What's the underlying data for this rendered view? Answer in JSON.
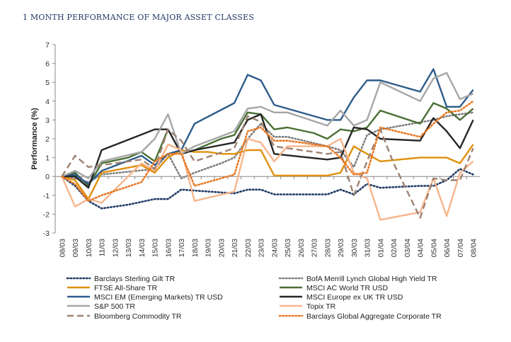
{
  "title": "1 MONTH PERFORMANCE OF MAJOR ASSET CLASSES",
  "chart_data": {
    "type": "line",
    "ylabel": "Performance (%)",
    "ylim": [
      -3,
      7
    ],
    "yticks": [
      -3,
      -2,
      -1,
      0,
      1,
      2,
      3,
      4,
      5,
      6,
      7
    ],
    "grid": false,
    "legend_position": "bottom",
    "x": [
      "08/03",
      "09/03",
      "10/03",
      "11/03",
      "12/03",
      "13/03",
      "14/03",
      "15/03",
      "16/03",
      "17/03",
      "18/03",
      "19/03",
      "20/03",
      "21/03",
      "22/03",
      "23/03",
      "24/03",
      "25/03",
      "26/03",
      "27/03",
      "28/03",
      "29/03",
      "30/03",
      "31/03",
      "01/04",
      "02/04",
      "03/04",
      "04/04",
      "05/04",
      "06/04",
      "07/04",
      "08/04"
    ],
    "series": [
      {
        "name": "Barclays Sterling Gilt TR",
        "color": "#1f3864",
        "dash": "dot",
        "points": [
          [
            0,
            0
          ],
          [
            1,
            -0.5
          ],
          [
            2,
            -1.3
          ],
          [
            3,
            -1.7
          ],
          [
            5,
            -1.5
          ],
          [
            7,
            -1.2
          ],
          [
            8,
            -1.2
          ],
          [
            9,
            -0.7
          ],
          [
            13,
            -0.9
          ],
          [
            14,
            -0.7
          ],
          [
            15,
            -0.7
          ],
          [
            16,
            -0.95
          ],
          [
            20,
            -0.95
          ],
          [
            21,
            -0.7
          ],
          [
            22,
            -0.95
          ],
          [
            23,
            -0.4
          ],
          [
            24,
            -0.6
          ],
          [
            27,
            -0.5
          ],
          [
            28,
            -0.5
          ],
          [
            29,
            -0.2
          ],
          [
            30,
            0.4
          ],
          [
            31,
            0.1
          ]
        ]
      },
      {
        "name": "BofA Merrill Lynch Global High Yield TR",
        "color": "#7f7f7f",
        "dash": "dot",
        "points": [
          [
            0,
            0
          ],
          [
            1,
            -0.1
          ],
          [
            2,
            -0.3
          ],
          [
            3,
            0.1
          ],
          [
            7,
            0.4
          ],
          [
            8,
            1.2
          ],
          [
            9,
            -0.1
          ],
          [
            10,
            0.2
          ],
          [
            12,
            0.7
          ],
          [
            13,
            1.0
          ],
          [
            14,
            2.0
          ],
          [
            15,
            2.8
          ],
          [
            16,
            2.1
          ],
          [
            17,
            2.1
          ],
          [
            20,
            1.6
          ],
          [
            21,
            1.4
          ],
          [
            22,
            0.5
          ],
          [
            23,
            2.2
          ],
          [
            24,
            2.5
          ],
          [
            28,
            3.0
          ],
          [
            29,
            3.2
          ],
          [
            30,
            3.3
          ],
          [
            31,
            3.4
          ]
        ]
      },
      {
        "name": "FTSE All-Share TR",
        "color": "#e0900e",
        "dash": "solid",
        "points": [
          [
            0,
            0
          ],
          [
            1,
            -0.2
          ],
          [
            2,
            -1.2
          ],
          [
            3,
            0.2
          ],
          [
            6,
            0.6
          ],
          [
            7,
            0.2
          ],
          [
            8,
            1.0
          ],
          [
            9,
            1.4
          ],
          [
            10,
            1.3
          ],
          [
            11,
            1.3
          ],
          [
            12,
            1.2
          ],
          [
            13,
            1.2
          ],
          [
            14,
            1.4
          ],
          [
            15,
            1.4
          ],
          [
            16,
            0.05
          ],
          [
            20,
            0.05
          ],
          [
            21,
            0.2
          ],
          [
            22,
            1.6
          ],
          [
            23,
            1.2
          ],
          [
            24,
            0.8
          ],
          [
            27,
            1.0
          ],
          [
            29,
            1.0
          ],
          [
            30,
            0.7
          ],
          [
            31,
            1.7
          ]
        ]
      },
      {
        "name": "MSCI AC World TR USD",
        "color": "#4a6f35",
        "dash": "solid",
        "points": [
          [
            0,
            0
          ],
          [
            1,
            0.2
          ],
          [
            2,
            -0.5
          ],
          [
            3,
            0.7
          ],
          [
            5,
            1.0
          ],
          [
            6,
            1.3
          ],
          [
            7,
            0.8
          ],
          [
            8,
            2.5
          ],
          [
            9,
            1.2
          ],
          [
            10,
            1.4
          ],
          [
            12,
            2.0
          ],
          [
            13,
            2.2
          ],
          [
            14,
            3.4
          ],
          [
            15,
            3.3
          ],
          [
            16,
            2.5
          ],
          [
            17,
            2.6
          ],
          [
            19,
            2.3
          ],
          [
            20,
            2.0
          ],
          [
            21,
            2.5
          ],
          [
            22,
            2.4
          ],
          [
            23,
            2.6
          ],
          [
            24,
            3.5
          ],
          [
            27,
            2.8
          ],
          [
            28,
            3.9
          ],
          [
            29,
            3.6
          ],
          [
            30,
            3.0
          ],
          [
            31,
            3.6
          ]
        ]
      },
      {
        "name": "MSCI EM (Emerging Markets) TR USD",
        "color": "#2e5c8a",
        "dash": "solid",
        "points": [
          [
            0,
            0
          ],
          [
            1,
            0.1
          ],
          [
            2,
            -0.4
          ],
          [
            3,
            0.3
          ],
          [
            6,
            1.1
          ],
          [
            7,
            0.6
          ],
          [
            8,
            1.2
          ],
          [
            9,
            1.4
          ],
          [
            10,
            2.8
          ],
          [
            13,
            3.9
          ],
          [
            14,
            5.4
          ],
          [
            15,
            5.1
          ],
          [
            16,
            3.8
          ],
          [
            17,
            3.6
          ],
          [
            20,
            3.0
          ],
          [
            21,
            3.0
          ],
          [
            22,
            4.2
          ],
          [
            23,
            5.1
          ],
          [
            24,
            5.1
          ],
          [
            27,
            4.5
          ],
          [
            28,
            5.7
          ],
          [
            29,
            3.7
          ],
          [
            30,
            3.7
          ],
          [
            31,
            4.6
          ]
        ]
      },
      {
        "name": "MSCI Europe ex UK TR USD",
        "color": "#262626",
        "dash": "solid",
        "points": [
          [
            0,
            0
          ],
          [
            1,
            0
          ],
          [
            2,
            -0.6
          ],
          [
            3,
            1.4
          ],
          [
            7,
            2.5
          ],
          [
            8,
            2.5
          ],
          [
            9,
            1.2
          ],
          [
            10,
            1.4
          ],
          [
            13,
            1.8
          ],
          [
            14,
            3.0
          ],
          [
            15,
            3.3
          ],
          [
            16,
            1.2
          ],
          [
            20,
            0.9
          ],
          [
            21,
            1.0
          ],
          [
            22,
            2.6
          ],
          [
            23,
            2.5
          ],
          [
            24,
            2.0
          ],
          [
            27,
            1.9
          ],
          [
            28,
            3.1
          ],
          [
            29,
            2.4
          ],
          [
            30,
            1.5
          ],
          [
            31,
            3.0
          ]
        ]
      },
      {
        "name": "S&P 500 TR",
        "color": "#a6a6a6",
        "dash": "solid",
        "points": [
          [
            0,
            0
          ],
          [
            1,
            0.3
          ],
          [
            2,
            -0.1
          ],
          [
            3,
            0.8
          ],
          [
            6,
            1.3
          ],
          [
            7,
            2.0
          ],
          [
            8,
            3.3
          ],
          [
            9,
            1.2
          ],
          [
            10,
            1.6
          ],
          [
            13,
            2.4
          ],
          [
            14,
            3.6
          ],
          [
            15,
            3.7
          ],
          [
            16,
            3.4
          ],
          [
            17,
            3.4
          ],
          [
            20,
            2.7
          ],
          [
            21,
            3.5
          ],
          [
            22,
            2.7
          ],
          [
            23,
            3.0
          ],
          [
            24,
            5.0
          ],
          [
            27,
            4.0
          ],
          [
            28,
            5.2
          ],
          [
            29,
            5.5
          ],
          [
            30,
            4.1
          ],
          [
            31,
            4.4
          ]
        ]
      },
      {
        "name": "Topix TR",
        "color": "#f7b58a",
        "dash": "solid",
        "points": [
          [
            0,
            0
          ],
          [
            1,
            -1.6
          ],
          [
            2,
            -1.2
          ],
          [
            3,
            -1.4
          ],
          [
            6,
            0.7
          ],
          [
            7,
            0.3
          ],
          [
            8,
            1.7
          ],
          [
            9,
            1.4
          ],
          [
            10,
            -1.3
          ],
          [
            13,
            -0.8
          ],
          [
            14,
            2.0
          ],
          [
            15,
            1.8
          ],
          [
            16,
            0.8
          ],
          [
            17,
            1.6
          ],
          [
            20,
            1.6
          ],
          [
            21,
            2.0
          ],
          [
            22,
            0.2
          ],
          [
            23,
            -0.1
          ],
          [
            24,
            -2.3
          ],
          [
            27,
            -1.9
          ],
          [
            28,
            -0.1
          ],
          [
            29,
            -2.1
          ],
          [
            30,
            0.2
          ],
          [
            31,
            0.8
          ]
        ]
      },
      {
        "name": "Bloomberg Commodity TR",
        "color": "#9e8272",
        "dash": "dash",
        "points": [
          [
            0,
            0
          ],
          [
            1,
            1.1
          ],
          [
            2,
            0.5
          ],
          [
            3,
            0.6
          ],
          [
            6,
            0.9
          ],
          [
            7,
            0.4
          ],
          [
            8,
            2.5
          ],
          [
            9,
            1.9
          ],
          [
            10,
            0.8
          ],
          [
            13,
            1.5
          ],
          [
            14,
            3.2
          ],
          [
            15,
            2.9
          ],
          [
            16,
            1.6
          ],
          [
            17,
            1.5
          ],
          [
            20,
            1.2
          ],
          [
            21,
            1.3
          ],
          [
            22,
            -1.0
          ],
          [
            23,
            0.8
          ],
          [
            24,
            2.5
          ],
          [
            25,
            0.7
          ],
          [
            27,
            -2.2
          ],
          [
            28,
            -0.1
          ],
          [
            29,
            -0.2
          ],
          [
            30,
            -0.2
          ],
          [
            31,
            1.5
          ]
        ]
      },
      {
        "name": "Barclays Global Aggregate Corporate TR",
        "color": "#e87722",
        "dash": "dot",
        "points": [
          [
            0,
            0
          ],
          [
            1,
            -0.4
          ],
          [
            2,
            -1.3
          ],
          [
            3,
            -1.0
          ],
          [
            6,
            -0.3
          ],
          [
            7,
            0.8
          ],
          [
            8,
            1.2
          ],
          [
            9,
            1.2
          ],
          [
            10,
            -0.5
          ],
          [
            13,
            0.1
          ],
          [
            14,
            2.4
          ],
          [
            15,
            2.6
          ],
          [
            16,
            1.9
          ],
          [
            17,
            1.9
          ],
          [
            20,
            1.6
          ],
          [
            21,
            1.0
          ],
          [
            22,
            0.1
          ],
          [
            23,
            0.2
          ],
          [
            24,
            2.6
          ],
          [
            27,
            2.1
          ],
          [
            28,
            2.8
          ],
          [
            29,
            3.4
          ],
          [
            30,
            3.5
          ],
          [
            31,
            4.0
          ]
        ]
      }
    ]
  }
}
